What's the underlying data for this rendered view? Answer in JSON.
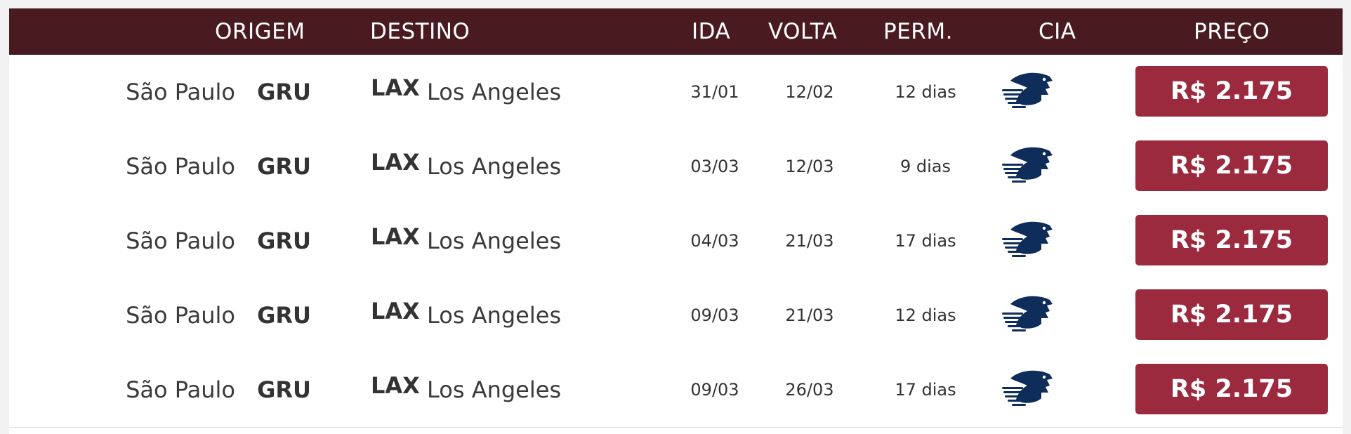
{
  "header": {
    "origem": "ORIGEM",
    "destino": "DESTINO",
    "ida": "IDA",
    "volta": "VOLTA",
    "perm": "PERM.",
    "cia": "CIA",
    "preco": "PREÇO"
  },
  "colors": {
    "header_bg": "#4a1a21",
    "price_bg": "#9b2a3e",
    "airline_logo": "#0f2d5a"
  },
  "rows": [
    {
      "origin_city": "São Paulo",
      "origin_code": "GRU",
      "dest_code": "LAX",
      "dest_city": "Los Angeles",
      "ida": "31/01",
      "volta": "12/02",
      "perm": "12 dias",
      "airline_icon": "eagle-airline-logo",
      "price": "R$ 2.175"
    },
    {
      "origin_city": "São Paulo",
      "origin_code": "GRU",
      "dest_code": "LAX",
      "dest_city": "Los Angeles",
      "ida": "03/03",
      "volta": "12/03",
      "perm": "9 dias",
      "airline_icon": "eagle-airline-logo",
      "price": "R$ 2.175"
    },
    {
      "origin_city": "São Paulo",
      "origin_code": "GRU",
      "dest_code": "LAX",
      "dest_city": "Los Angeles",
      "ida": "04/03",
      "volta": "21/03",
      "perm": "17 dias",
      "airline_icon": "eagle-airline-logo",
      "price": "R$ 2.175"
    },
    {
      "origin_city": "São Paulo",
      "origin_code": "GRU",
      "dest_code": "LAX",
      "dest_city": "Los Angeles",
      "ida": "09/03",
      "volta": "21/03",
      "perm": "12 dias",
      "airline_icon": "eagle-airline-logo",
      "price": "R$ 2.175"
    },
    {
      "origin_city": "São Paulo",
      "origin_code": "GRU",
      "dest_code": "LAX",
      "dest_city": "Los Angeles",
      "ida": "09/03",
      "volta": "26/03",
      "perm": "17 dias",
      "airline_icon": "eagle-airline-logo",
      "price": "R$ 2.175"
    }
  ]
}
